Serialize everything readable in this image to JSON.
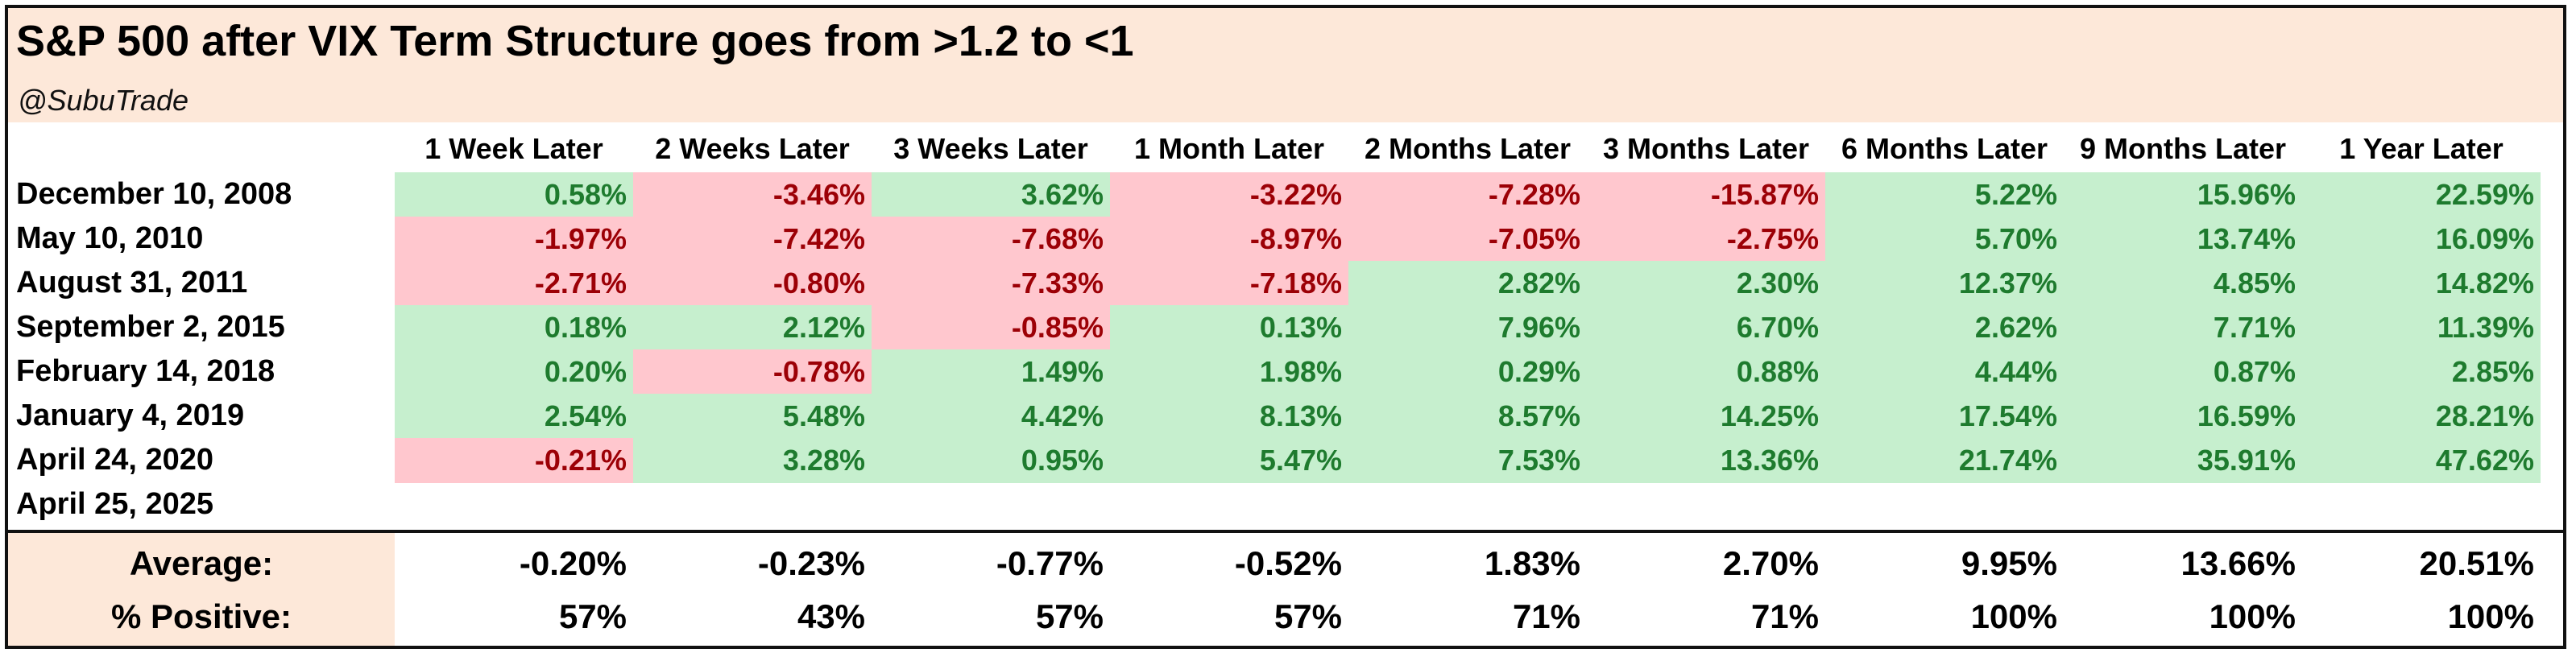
{
  "chart_data": {
    "type": "table",
    "title": "S&P 500 after VIX Term Structure goes from >1.2 to <1",
    "subtitle": "@SubuTrade",
    "columns": [
      "1 Week Later",
      "2 Weeks Later",
      "3 Weeks Later",
      "1 Month Later",
      "2 Months Later",
      "3 Months Later",
      "6 Months Later",
      "9 Months Later",
      "1 Year Later"
    ],
    "rows": [
      {
        "date": "December 10, 2008",
        "values": [
          "0.58%",
          "-3.46%",
          "3.62%",
          "-3.22%",
          "-7.28%",
          "-15.87%",
          "5.22%",
          "15.96%",
          "22.59%"
        ]
      },
      {
        "date": "May 10, 2010",
        "values": [
          "-1.97%",
          "-7.42%",
          "-7.68%",
          "-8.97%",
          "-7.05%",
          "-2.75%",
          "5.70%",
          "13.74%",
          "16.09%"
        ]
      },
      {
        "date": "August 31, 2011",
        "values": [
          "-2.71%",
          "-0.80%",
          "-7.33%",
          "-7.18%",
          "2.82%",
          "2.30%",
          "12.37%",
          "4.85%",
          "14.82%"
        ]
      },
      {
        "date": "September 2, 2015",
        "values": [
          "0.18%",
          "2.12%",
          "-0.85%",
          "0.13%",
          "7.96%",
          "6.70%",
          "2.62%",
          "7.71%",
          "11.39%"
        ]
      },
      {
        "date": "February 14, 2018",
        "values": [
          "0.20%",
          "-0.78%",
          "1.49%",
          "1.98%",
          "0.29%",
          "0.88%",
          "4.44%",
          "0.87%",
          "2.85%"
        ]
      },
      {
        "date": "January 4, 2019",
        "values": [
          "2.54%",
          "5.48%",
          "4.42%",
          "8.13%",
          "8.57%",
          "14.25%",
          "17.54%",
          "16.59%",
          "28.21%"
        ]
      },
      {
        "date": "April 24, 2020",
        "values": [
          "-0.21%",
          "3.28%",
          "0.95%",
          "5.47%",
          "7.53%",
          "13.36%",
          "21.74%",
          "35.91%",
          "47.62%"
        ]
      },
      {
        "date": "April 25, 2025",
        "values": []
      }
    ],
    "summary": [
      {
        "label": "Average:",
        "values": [
          "-0.20%",
          "-0.23%",
          "-0.77%",
          "-0.52%",
          "1.83%",
          "2.70%",
          "9.95%",
          "13.66%",
          "20.51%"
        ]
      },
      {
        "label": "% Positive:",
        "values": [
          "57%",
          "43%",
          "57%",
          "57%",
          "71%",
          "71%",
          "100%",
          "100%",
          "100%"
        ]
      }
    ],
    "colors": {
      "positive_fill": "#c6efce",
      "positive_text": "#1e7b2e",
      "negative_fill": "#ffc7ce",
      "negative_text": "#9c0006",
      "header_fill": "#fde8d9"
    }
  }
}
